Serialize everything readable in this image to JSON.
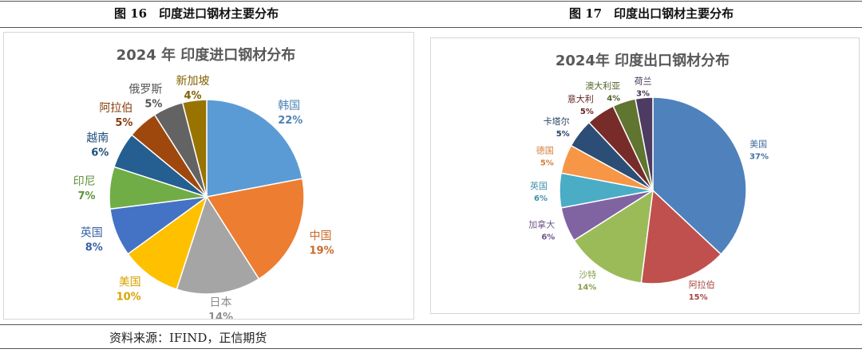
{
  "captions": {
    "left": "图 16　印度进口钢材主要分布",
    "right": "图 17　印度出口钢材主要分布"
  },
  "source": "资料来源：IFIND，正信期货",
  "chart_data": [
    {
      "type": "pie",
      "title": "2024 年 印度进口钢材分布",
      "categories": [
        "韩国",
        "中国",
        "日本",
        "美国",
        "英国",
        "印尼",
        "越南",
        "阿拉伯",
        "俄罗斯",
        "新加坡"
      ],
      "values": [
        22,
        19,
        14,
        10,
        8,
        7,
        6,
        5,
        5,
        4
      ],
      "labels": [
        "22%",
        "19%",
        "14%",
        "10%",
        "8%",
        "7%",
        "6%",
        "5%",
        "5%",
        "4%"
      ],
      "colors": [
        "#5b9bd5",
        "#ed7d31",
        "#a5a5a5",
        "#ffc000",
        "#4472c4",
        "#70ad47",
        "#255e91",
        "#9e480e",
        "#636363",
        "#997300"
      ],
      "legend": "none"
    },
    {
      "type": "pie",
      "title": "2024年 印度出口钢材分布",
      "categories": [
        "美国",
        "阿拉伯",
        "沙特",
        "加拿大",
        "英国",
        "德国",
        "卡塔尔",
        "意大利",
        "澳大利亚",
        "荷兰"
      ],
      "values": [
        37,
        15,
        14,
        6,
        6,
        5,
        5,
        5,
        4,
        3
      ],
      "labels": [
        "37%",
        "15%",
        "14%",
        "6%",
        "6%",
        "5%",
        "5%",
        "5%",
        "4%",
        "3%"
      ],
      "colors": [
        "#4f81bd",
        "#c0504d",
        "#9bbb59",
        "#8064a2",
        "#4bacc6",
        "#f79646",
        "#2c4d75",
        "#772c2a",
        "#5f7530",
        "#4d3b62"
      ],
      "legend": "none"
    }
  ]
}
